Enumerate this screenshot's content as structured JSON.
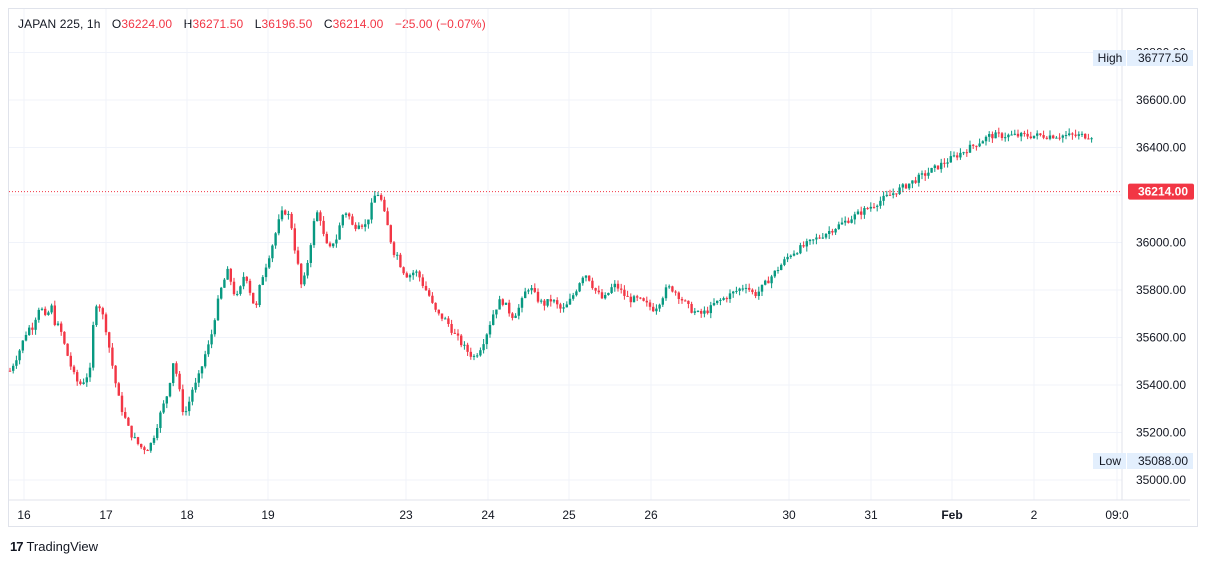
{
  "legend": {
    "symbol": "JAPAN 225",
    "interval": "1h",
    "open_label": "O",
    "open": "36224.00",
    "high_label": "H",
    "high": "36271.50",
    "low_label": "L",
    "low": "36196.50",
    "close_label": "C",
    "close": "36214.00",
    "change": "−25.00 (−0.07%)"
  },
  "price_scale": {
    "ticks": [
      "36800.00",
      "36600.00",
      "36400.00",
      "36200.00",
      "36000.00",
      "35800.00",
      "35600.00",
      "35400.00",
      "35200.00",
      "35000.00"
    ],
    "high_label": "High",
    "high_value": "36777.50",
    "low_label": "Low",
    "low_value": "35088.00",
    "last_price": "36214.00"
  },
  "time_scale": {
    "labels": [
      "16",
      "17",
      "18",
      "19",
      "23",
      "24",
      "25",
      "26",
      "30",
      "31",
      "Feb",
      "2",
      "09:0"
    ]
  },
  "brand": {
    "logo": "17",
    "name": "TradingView"
  },
  "colors": {
    "up": "#089981",
    "down": "#f23645",
    "last": "#f23645",
    "grid": "#f0f3fa"
  },
  "chart_data": {
    "type": "candlestick",
    "title": "JAPAN 225, 1h",
    "ylim": [
      35000,
      36800
    ],
    "x_ticks": [
      "16",
      "17",
      "18",
      "19",
      "23",
      "24",
      "25",
      "26",
      "30",
      "31",
      "Feb",
      "2"
    ],
    "anchors": [
      [
        0,
        35460
      ],
      [
        8,
        35530
      ],
      [
        18,
        35640
      ],
      [
        22,
        35640
      ],
      [
        30,
        35740
      ],
      [
        35,
        35680
      ],
      [
        42,
        35730
      ],
      [
        45,
        35660
      ],
      [
        50,
        35640
      ],
      [
        55,
        35560
      ],
      [
        63,
        35450
      ],
      [
        69,
        35400
      ],
      [
        74,
        35420
      ],
      [
        80,
        35460
      ],
      [
        85,
        35750
      ],
      [
        90,
        35730
      ],
      [
        95,
        35660
      ],
      [
        100,
        35540
      ],
      [
        105,
        35420
      ],
      [
        110,
        35320
      ],
      [
        115,
        35260
      ],
      [
        120,
        35200
      ],
      [
        125,
        35170
      ],
      [
        130,
        35140
      ],
      [
        137,
        35130
      ],
      [
        142,
        35160
      ],
      [
        147,
        35230
      ],
      [
        152,
        35300
      ],
      [
        156,
        35340
      ],
      [
        160,
        35420
      ],
      [
        163,
        35500
      ],
      [
        167,
        35440
      ],
      [
        170,
        35360
      ],
      [
        174,
        35270
      ],
      [
        178,
        35310
      ],
      [
        182,
        35380
      ],
      [
        187,
        35410
      ],
      [
        192,
        35480
      ],
      [
        196,
        35540
      ],
      [
        200,
        35580
      ],
      [
        205,
        35690
      ],
      [
        210,
        35790
      ],
      [
        215,
        35850
      ],
      [
        218,
        35880
      ],
      [
        222,
        35820
      ],
      [
        226,
        35760
      ],
      [
        230,
        35800
      ],
      [
        235,
        35880
      ],
      [
        238,
        35830
      ],
      [
        242,
        35760
      ],
      [
        246,
        35720
      ],
      [
        250,
        35820
      ],
      [
        254,
        35880
      ],
      [
        258,
        35930
      ],
      [
        263,
        36000
      ],
      [
        267,
        36060
      ],
      [
        271,
        36120
      ],
      [
        275,
        36130
      ],
      [
        278,
        36120
      ],
      [
        282,
        36060
      ],
      [
        285,
        35970
      ],
      [
        289,
        35880
      ],
      [
        292,
        35800
      ],
      [
        295,
        35860
      ],
      [
        299,
        35950
      ],
      [
        303,
        36060
      ],
      [
        306,
        36130
      ],
      [
        310,
        36110
      ],
      [
        314,
        36020
      ],
      [
        319,
        35960
      ],
      [
        322,
        36000
      ],
      [
        326,
        36010
      ],
      [
        329,
        36060
      ],
      [
        333,
        36120
      ],
      [
        337,
        36130
      ],
      [
        340,
        36100
      ],
      [
        344,
        36050
      ],
      [
        347,
        36090
      ],
      [
        351,
        36080
      ],
      [
        355,
        36070
      ],
      [
        358,
        36100
      ],
      [
        362,
        36160
      ],
      [
        366,
        36210
      ],
      [
        370,
        36200
      ],
      [
        373,
        36140
      ],
      [
        377,
        36080
      ],
      [
        380,
        36020
      ],
      [
        384,
        35960
      ],
      [
        387,
        35950
      ],
      [
        391,
        35900
      ],
      [
        395,
        35870
      ],
      [
        398,
        35860
      ],
      [
        402,
        35870
      ],
      [
        405,
        35880
      ],
      [
        409,
        35860
      ],
      [
        412,
        35830
      ],
      [
        416,
        35800
      ],
      [
        420,
        35770
      ],
      [
        423,
        35730
      ],
      [
        427,
        35700
      ],
      [
        430,
        35690
      ],
      [
        434,
        35680
      ],
      [
        438,
        35660
      ],
      [
        442,
        35630
      ],
      [
        445,
        35610
      ],
      [
        449,
        35590
      ],
      [
        452,
        35570
      ],
      [
        456,
        35550
      ],
      [
        460,
        35530
      ],
      [
        464,
        35520
      ],
      [
        468,
        35540
      ],
      [
        472,
        35570
      ],
      [
        476,
        35610
      ],
      [
        480,
        35660
      ],
      [
        484,
        35710
      ],
      [
        488,
        35740
      ],
      [
        491,
        35760
      ],
      [
        495,
        35740
      ],
      [
        499,
        35710
      ],
      [
        503,
        35690
      ],
      [
        507,
        35710
      ],
      [
        511,
        35740
      ],
      [
        514,
        35780
      ],
      [
        518,
        35810
      ],
      [
        522,
        35800
      ],
      [
        526,
        35770
      ],
      [
        530,
        35750
      ],
      [
        534,
        35740
      ],
      [
        538,
        35750
      ],
      [
        542,
        35760
      ],
      [
        546,
        35740
      ],
      [
        550,
        35720
      ],
      [
        554,
        35720
      ],
      [
        558,
        35740
      ],
      [
        562,
        35770
      ],
      [
        566,
        35800
      ],
      [
        570,
        35840
      ],
      [
        574,
        35870
      ],
      [
        578,
        35860
      ],
      [
        581,
        35830
      ],
      [
        585,
        35800
      ],
      [
        589,
        35780
      ],
      [
        593,
        35760
      ],
      [
        596,
        35770
      ],
      [
        600,
        35800
      ],
      [
        604,
        35820
      ],
      [
        608,
        35810
      ],
      [
        612,
        35790
      ],
      [
        616,
        35770
      ],
      [
        620,
        35760
      ],
      [
        624,
        35760
      ],
      [
        628,
        35760
      ],
      [
        632,
        35750
      ],
      [
        636,
        35740
      ],
      [
        640,
        35730
      ],
      [
        644,
        35720
      ],
      [
        648,
        35740
      ],
      [
        652,
        35770
      ],
      [
        656,
        35800
      ],
      [
        660,
        35810
      ],
      [
        664,
        35800
      ],
      [
        668,
        35780
      ],
      [
        672,
        35760
      ],
      [
        676,
        35740
      ],
      [
        680,
        35720
      ],
      [
        684,
        35710
      ],
      [
        688,
        35700
      ],
      [
        692,
        35700
      ],
      [
        696,
        35710
      ],
      [
        700,
        35720
      ],
      [
        704,
        35740
      ],
      [
        708,
        35750
      ],
      [
        712,
        35760
      ],
      [
        716,
        35770
      ],
      [
        720,
        35780
      ],
      [
        724,
        35790
      ],
      [
        728,
        35800
      ],
      [
        732,
        35810
      ],
      [
        736,
        35820
      ],
      [
        740,
        35800
      ],
      [
        744,
        35780
      ],
      [
        748,
        35790
      ],
      [
        752,
        35810
      ],
      [
        756,
        35830
      ],
      [
        760,
        35850
      ],
      [
        764,
        35870
      ],
      [
        768,
        35890
      ],
      [
        772,
        35910
      ],
      [
        776,
        35930
      ],
      [
        780,
        35950
      ],
      [
        784,
        35960
      ],
      [
        788,
        35970
      ],
      [
        792,
        35980
      ],
      [
        796,
        35990
      ],
      [
        800,
        36000
      ],
      [
        804,
        36010
      ],
      [
        808,
        36020
      ],
      [
        812,
        36030
      ],
      [
        816,
        36040
      ],
      [
        820,
        36050
      ],
      [
        824,
        36060
      ],
      [
        828,
        36070
      ],
      [
        832,
        36080
      ],
      [
        836,
        36090
      ],
      [
        840,
        36100
      ],
      [
        844,
        36110
      ],
      [
        848,
        36120
      ],
      [
        852,
        36130
      ],
      [
        856,
        36140
      ],
      [
        860,
        36150
      ],
      [
        864,
        36160
      ],
      [
        868,
        36170
      ],
      [
        872,
        36180
      ],
      [
        876,
        36190
      ],
      [
        880,
        36200
      ],
      [
        884,
        36210
      ],
      [
        888,
        36220
      ],
      [
        892,
        36230
      ],
      [
        896,
        36240
      ],
      [
        900,
        36250
      ],
      [
        904,
        36260
      ],
      [
        908,
        36270
      ],
      [
        912,
        36280
      ],
      [
        916,
        36290
      ],
      [
        920,
        36300
      ],
      [
        924,
        36310
      ],
      [
        928,
        36320
      ],
      [
        932,
        36330
      ],
      [
        936,
        36340
      ],
      [
        940,
        36350
      ],
      [
        944,
        36360
      ],
      [
        948,
        36370
      ],
      [
        952,
        36380
      ],
      [
        956,
        36390
      ],
      [
        960,
        36400
      ],
      [
        964,
        36410
      ],
      [
        968,
        36420
      ],
      [
        972,
        36430
      ],
      [
        976,
        36440
      ],
      [
        980,
        36450
      ]
    ]
  }
}
